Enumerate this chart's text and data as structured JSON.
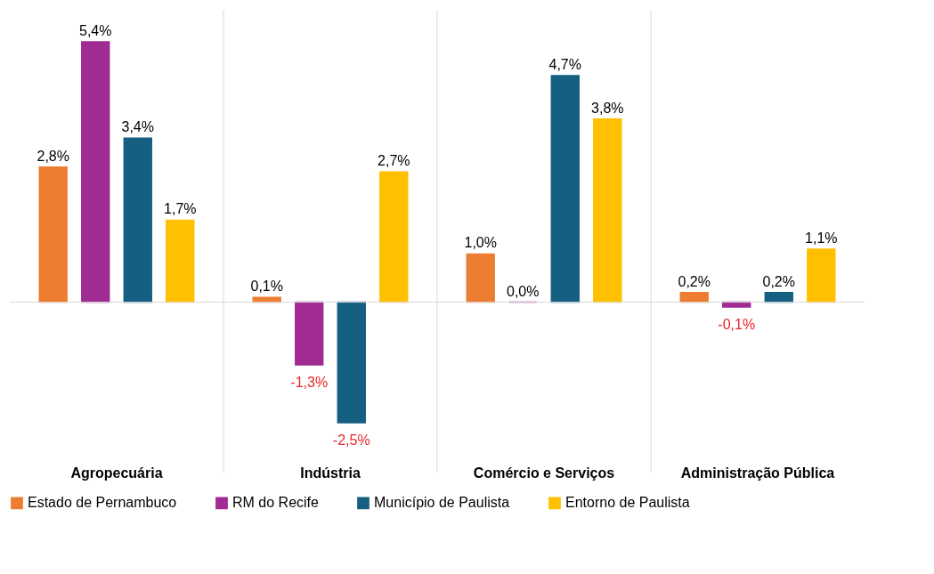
{
  "chart_data": {
    "type": "bar",
    "categories": [
      "Agropecuária",
      "Indústria",
      "Comércio e Serviços",
      "Administração Pública"
    ],
    "series": [
      {
        "name": "Estado de Pernambuco",
        "color": "#ed7d31",
        "values": [
          2.8,
          0.1,
          1.0,
          0.2
        ],
        "value_labels": [
          "2,8%",
          "0,1%",
          "1,0%",
          "0,2%"
        ]
      },
      {
        "name": "RM do Recife",
        "color": "#a02b93",
        "values": [
          5.4,
          -1.3,
          0.0,
          -0.1
        ],
        "value_labels": [
          "5,4%",
          "-1,3%",
          "0,0%",
          "-0,1%"
        ]
      },
      {
        "name": "Município de Paulista",
        "color": "#156082",
        "values": [
          3.4,
          -2.5,
          4.7,
          0.2
        ],
        "value_labels": [
          "3,4%",
          "-2,5%",
          "4,7%",
          "0,2%"
        ]
      },
      {
        "name": "Entorno de Paulista",
        "color": "#ffc000",
        "values": [
          1.7,
          2.7,
          3.8,
          1.1
        ],
        "value_labels": [
          "1,7%",
          "2,7%",
          "3,8%",
          "1,1%"
        ]
      }
    ],
    "grid": "x",
    "legend": "bottom",
    "tick_labels": "x"
  }
}
